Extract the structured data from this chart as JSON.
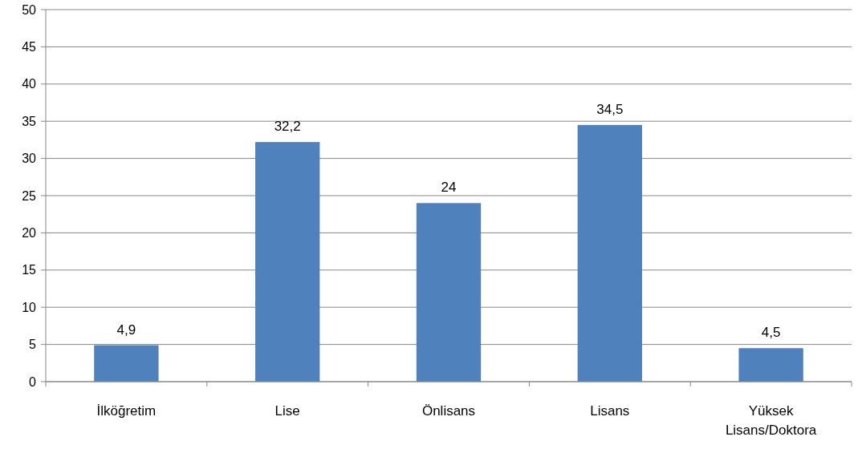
{
  "chart_data": {
    "type": "bar",
    "categories": [
      "İlköğretim",
      "Lise",
      "Önlisans",
      "Lisans",
      "Yüksek Lisans/Doktora"
    ],
    "values": [
      4.9,
      32.2,
      24,
      34.5,
      4.5
    ],
    "value_labels": [
      "4,9",
      "32,2",
      "24",
      "34,5",
      "4,5"
    ],
    "color": "#4f81bd",
    "ylim": [
      0,
      50
    ],
    "yticks": [
      0,
      5,
      10,
      15,
      20,
      25,
      30,
      35,
      40,
      45,
      50
    ],
    "grid": "y"
  }
}
